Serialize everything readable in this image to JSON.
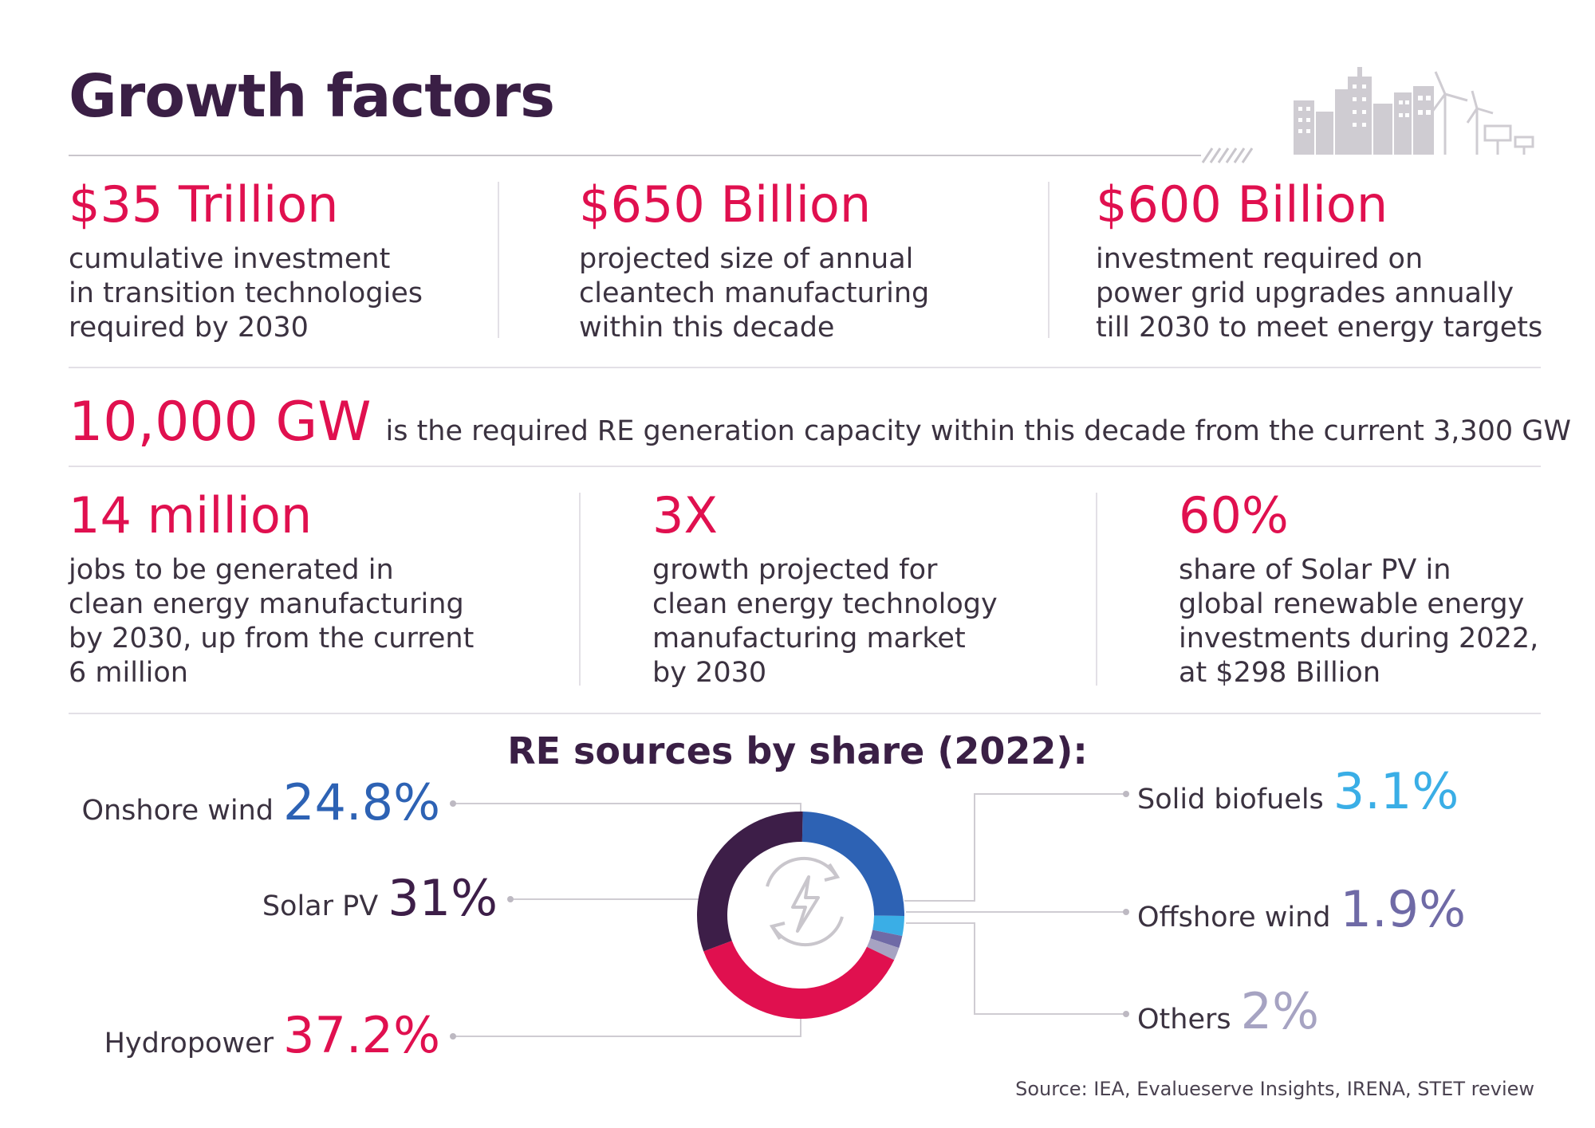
{
  "title": "Growth factors",
  "top_stats": [
    {
      "value": "$35 Trillion",
      "lines": [
        "cumulative investment",
        "in transition technologies",
        "required by 2030"
      ]
    },
    {
      "value": "$650 Billion",
      "lines": [
        "projected size of annual",
        "cleantech manufacturing",
        "within this decade"
      ]
    },
    {
      "value": "$600 Billion",
      "lines": [
        "investment required on",
        "power grid upgrades annually",
        "till 2030 to meet energy targets"
      ]
    }
  ],
  "generation": {
    "value": "10,000 GW",
    "text": "is the required RE generation capacity within this decade from the current 3,300 GW"
  },
  "bottom_stats": [
    {
      "value": "14 million",
      "lines": [
        "jobs to be generated in",
        "clean energy manufacturing",
        "by 2030, up from the current",
        "6 million"
      ]
    },
    {
      "value": "3X",
      "lines": [
        "growth projected for",
        "clean energy technology",
        "manufacturing market",
        "by 2030"
      ]
    },
    {
      "value": "60%",
      "lines": [
        "share of Solar PV in",
        "global renewable energy",
        "investments during 2022,",
        "at $298 Billion"
      ]
    }
  ],
  "chart_data": {
    "type": "pie",
    "title": "RE sources by share (2022):",
    "series": [
      {
        "name": "Onshore wind",
        "value": 24.8,
        "label": "24.8%",
        "color": "#2d62b4"
      },
      {
        "name": "Solid biofuels",
        "value": 3.1,
        "label": "3.1%",
        "color": "#3aaee6"
      },
      {
        "name": "Offshore wind",
        "value": 1.9,
        "label": "1.9%",
        "color": "#6f6aa6"
      },
      {
        "name": "Others",
        "value": 2,
        "label": "2%",
        "color": "#a6a3c2"
      },
      {
        "name": "Hydropower",
        "value": 37.2,
        "label": "37.2%",
        "color": "#e0104f"
      },
      {
        "name": "Solar PV",
        "value": 31,
        "label": "31%",
        "color": "#3d1e48"
      }
    ],
    "center_icon": "recycle-bolt-icon"
  },
  "source": "Source: IEA, Evalueserve Insights, IRENA, STET review",
  "illustration": "city-wind-solar-icon"
}
